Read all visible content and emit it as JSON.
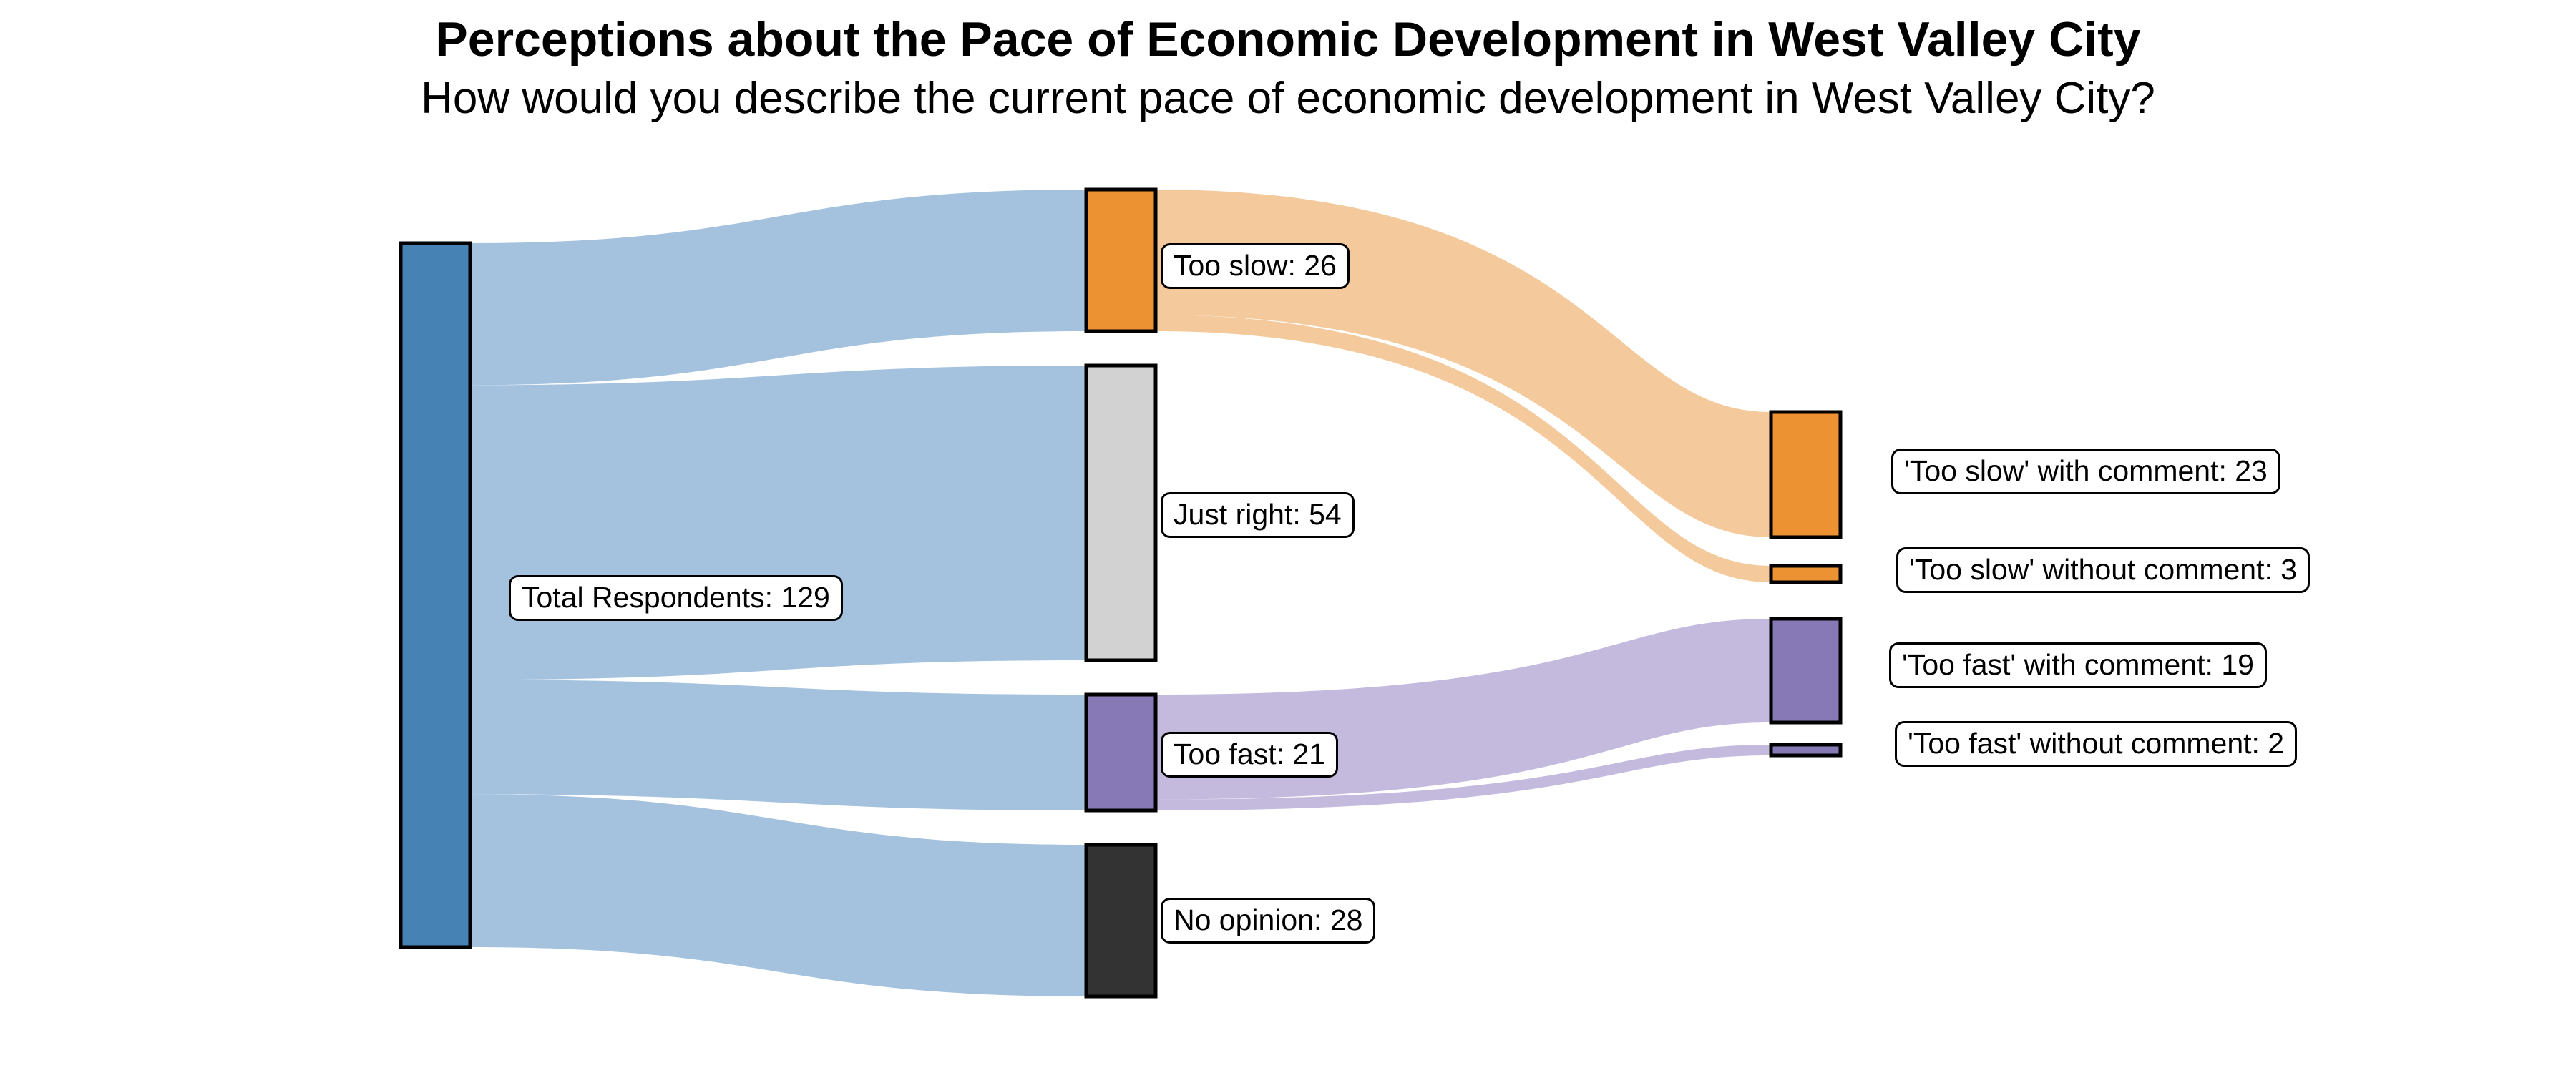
{
  "chart_data": {
    "type": "sankey",
    "title": "Perceptions about the Pace of Economic Development in West Valley City",
    "subtitle": "How would you describe the current pace of economic development in West Valley City?",
    "background_color": "#ffffff",
    "node_border_color": "#000000",
    "nodes": [
      {
        "id": "total",
        "label": "Total Respondents: 129",
        "value": 129,
        "color": "#4682b4",
        "column": 0
      },
      {
        "id": "too_slow",
        "label": "Too slow: 26",
        "value": 26,
        "color": "#ec9233",
        "column": 1
      },
      {
        "id": "just_right",
        "label": "Just right: 54",
        "value": 54,
        "color": "#d2d2d2",
        "column": 1
      },
      {
        "id": "too_fast",
        "label": "Too fast: 21",
        "value": 21,
        "color": "#8679b6",
        "column": 1
      },
      {
        "id": "no_opinion",
        "label": "No opinion: 28",
        "value": 28,
        "color": "#333333",
        "column": 1
      },
      {
        "id": "slow_with",
        "label": "'Too slow' with comment: 23",
        "value": 23,
        "color": "#ec9233",
        "column": 2
      },
      {
        "id": "slow_without",
        "label": "'Too slow' without comment: 3",
        "value": 3,
        "color": "#ec9233",
        "column": 2
      },
      {
        "id": "fast_with",
        "label": "'Too fast' with comment: 19",
        "value": 19,
        "color": "#8679b6",
        "column": 2
      },
      {
        "id": "fast_without",
        "label": "'Too fast' without comment: 2",
        "value": 2,
        "color": "#8679b6",
        "column": 2
      }
    ],
    "links": [
      {
        "source": "total",
        "target": "too_slow",
        "value": 26,
        "color": "#a4c2de"
      },
      {
        "source": "total",
        "target": "just_right",
        "value": 54,
        "color": "#a4c2de"
      },
      {
        "source": "total",
        "target": "too_fast",
        "value": 21,
        "color": "#a4c2de"
      },
      {
        "source": "total",
        "target": "no_opinion",
        "value": 28,
        "color": "#a4c2de"
      },
      {
        "source": "too_slow",
        "target": "slow_with",
        "value": 23,
        "color": "#f4c99b"
      },
      {
        "source": "too_slow",
        "target": "slow_without",
        "value": 3,
        "color": "#f4c99b"
      },
      {
        "source": "too_fast",
        "target": "fast_with",
        "value": 19,
        "color": "#c3bade"
      },
      {
        "source": "too_fast",
        "target": "fast_without",
        "value": 2,
        "color": "#c3bade"
      }
    ]
  }
}
